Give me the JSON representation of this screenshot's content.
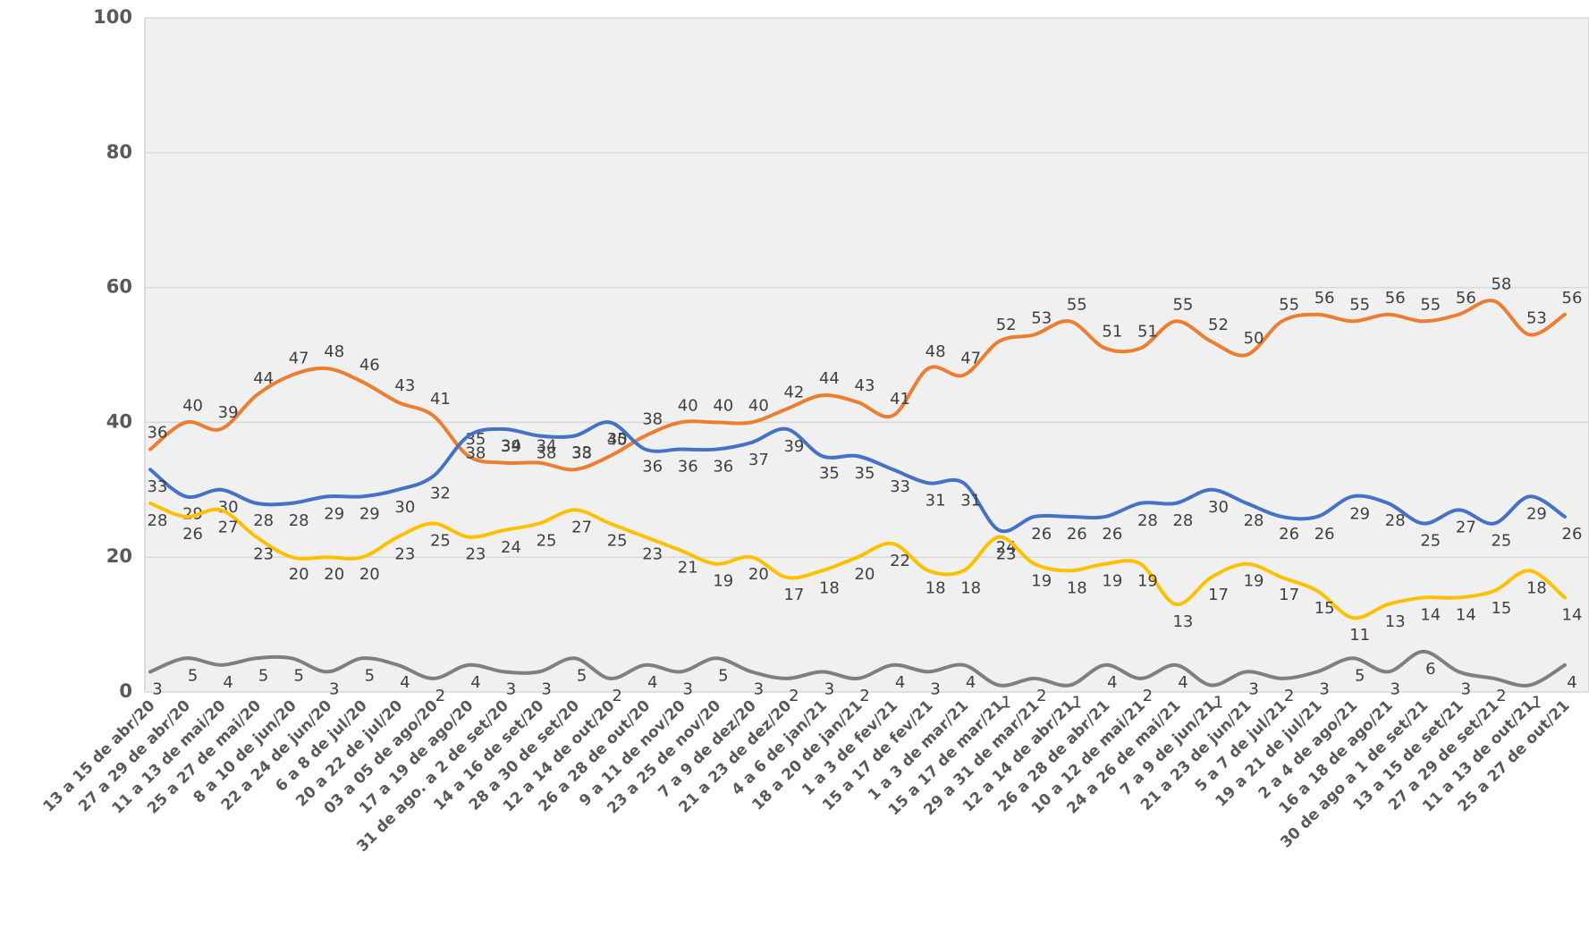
{
  "chart_data": {
    "type": "line",
    "categories": [
      "13 a 15 de abr/20",
      "27 a 29 de abr/20",
      "11 a 13 de mai/20",
      "25 a 27 de mai/20",
      "8 a 10 de jun/20",
      "22 a 24 de jun/20",
      "6 a 8 de jul/20",
      "20 a 22 de jul/20",
      "03 a 05 de ago/20",
      "17 a 19 de ago/20",
      "31 de ago. a 2 de set/20",
      "14 a 16 de set/20",
      "28 a 30 de set/20",
      "12 a 14 de out/20",
      "26 a 28 de out/20",
      "9 a 11 de nov/20",
      "23 a 25 de nov/20",
      "7 a 9 de dez/20",
      "21 a 23 de dez/20",
      "4 a 6 de jan/21",
      "18 a 20 de jan/21",
      "1 a 3 de fev/21",
      "15 a 17 de fev/21",
      "1 a 3 de mar/21",
      "15 a 17 de mar/21",
      "29 a 31 de mar/21",
      "12 a 14 de abr/21",
      "26 a 28 de abr/21",
      "10 a 12 de mai/21",
      "24 a 26 de mai/21",
      "7 a 9 de jun/21",
      "21 a 23 de jun/21",
      "5 a 7 de jul/21",
      "19 a 21 de jul/21",
      "2 a 4 de ago/21",
      "16 a 18 de ago/21",
      "30 de ago a 1 de set/21",
      "13 a 15 de set/21",
      "27 a 29 de set/21",
      "11 a 13 de out/21",
      "25 a 27 de out/21"
    ],
    "series": [
      {
        "color": "#ed7d31",
        "values": [
          36,
          40,
          39,
          44,
          47,
          48,
          46,
          43,
          41,
          35,
          34,
          34,
          33,
          35,
          38,
          40,
          40,
          40,
          42,
          44,
          43,
          41,
          48,
          47,
          52,
          53,
          55,
          51,
          51,
          55,
          52,
          50,
          55,
          56,
          55,
          56,
          55,
          56,
          58,
          53,
          56
        ]
      },
      {
        "color": "#4472c4",
        "values": [
          33,
          29,
          30,
          28,
          28,
          29,
          29,
          30,
          32,
          38,
          39,
          38,
          38,
          40,
          36,
          36,
          36,
          37,
          39,
          35,
          35,
          33,
          31,
          31,
          24,
          26,
          26,
          26,
          28,
          28,
          30,
          28,
          26,
          26,
          29,
          28,
          25,
          27,
          25,
          29,
          26
        ]
      },
      {
        "color": "#ffc000",
        "values": [
          28,
          26,
          27,
          23,
          20,
          20,
          20,
          23,
          25,
          23,
          24,
          25,
          27,
          25,
          23,
          21,
          19,
          20,
          17,
          18,
          20,
          22,
          18,
          18,
          23,
          19,
          18,
          19,
          19,
          13,
          17,
          19,
          17,
          15,
          11,
          13,
          14,
          14,
          15,
          18,
          14
        ]
      },
      {
        "color": "#7f7f7f",
        "values": [
          3,
          5,
          4,
          5,
          5,
          3,
          5,
          4,
          2,
          4,
          3,
          3,
          5,
          2,
          4,
          3,
          5,
          3,
          2,
          3,
          2,
          4,
          3,
          4,
          1,
          2,
          1,
          4,
          2,
          4,
          1,
          3,
          2,
          3,
          5,
          3,
          6,
          3,
          2,
          1,
          4
        ]
      }
    ],
    "ylim": [
      0,
      100
    ],
    "yticks": [
      0,
      20,
      40,
      60,
      80,
      100
    ],
    "grid": true
  }
}
